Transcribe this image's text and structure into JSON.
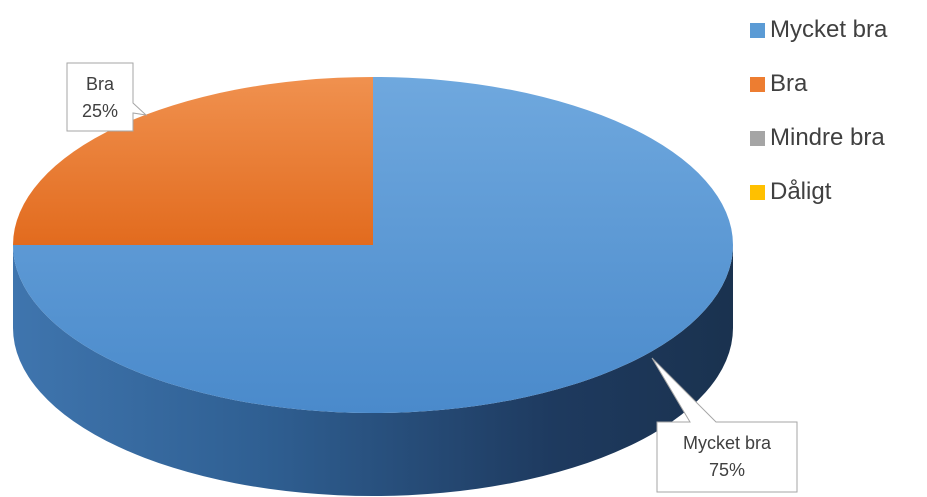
{
  "chart_data": {
    "type": "pie",
    "style": "3d",
    "title": "",
    "categories": [
      "Mycket bra",
      "Bra",
      "Mindre bra",
      "Dåligt"
    ],
    "values": [
      75,
      25,
      0,
      0
    ],
    "data_labels": [
      {
        "category": "Mycket bra",
        "value": "75%"
      },
      {
        "category": "Bra",
        "value": "25%"
      }
    ],
    "colors": [
      "#5B9BD5",
      "#ED7D31",
      "#A5A5A5",
      "#FFC000"
    ],
    "legend_position": "right"
  },
  "legend": {
    "items": [
      {
        "label": "Mycket bra",
        "color": "#5B9BD5"
      },
      {
        "label": "Bra",
        "color": "#ED7D31"
      },
      {
        "label": "Mindre bra",
        "color": "#A5A5A5"
      },
      {
        "label": "Dåligt",
        "color": "#FFC000"
      }
    ]
  }
}
